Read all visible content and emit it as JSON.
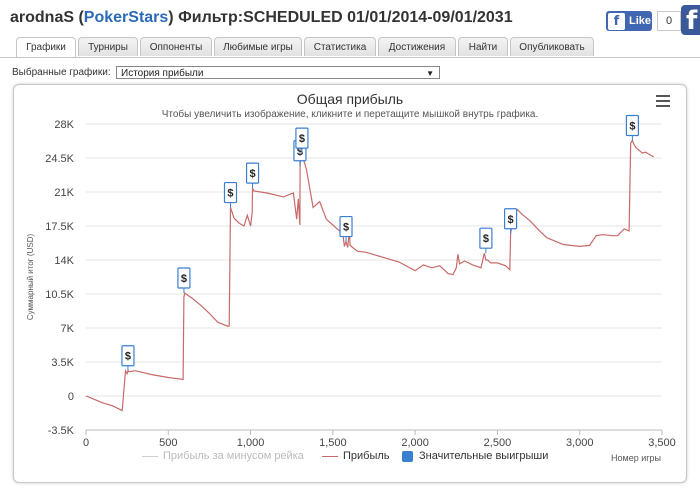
{
  "header": {
    "player": "arodnaS",
    "site": "PokerStars",
    "filter_label": "Фильтр:",
    "filter_value": "SCHEDULED 01/01/2014-09/01/2031",
    "fb_like": "Like",
    "fb_count": "0",
    "fb_icon": "facebook-icon"
  },
  "tabs": [
    {
      "label": "Графики",
      "active": true
    },
    {
      "label": "Турниры",
      "active": false
    },
    {
      "label": "Оппоненты",
      "active": false
    },
    {
      "label": "Любимые игры",
      "active": false
    },
    {
      "label": "Статистика",
      "active": false
    },
    {
      "label": "Достижения",
      "active": false
    },
    {
      "label": "Найти",
      "active": false
    },
    {
      "label": "Опубликовать",
      "active": false
    }
  ],
  "chart_select": {
    "label": "Выбранные графики:",
    "value": "История прибыли"
  },
  "chart_data": {
    "type": "line",
    "title": "Общая прибыль",
    "subtitle": "Чтобы увеличить изображение, кликните и перетащите мышкой внутрь графика.",
    "xlabel": "Номер игры",
    "ylabel": "Суммарный итог (USD)",
    "xlim": [
      0,
      3500
    ],
    "ylim": [
      -3500,
      28000
    ],
    "x_ticks": [
      0,
      500,
      1000,
      1500,
      2000,
      2500,
      3000,
      3500
    ],
    "x_tick_labels": [
      "0",
      "500",
      "1,000",
      "1,500",
      "2,000",
      "2,500",
      "3,000",
      "3,500"
    ],
    "y_ticks": [
      -3500,
      0,
      3500,
      7000,
      10500,
      14000,
      17500,
      21000,
      24500,
      28000
    ],
    "y_tick_labels": [
      "-3.5K",
      "0",
      "3.5K",
      "7K",
      "10.5K",
      "14K",
      "17.5K",
      "21K",
      "24.5K",
      "28K"
    ],
    "grid": "horizontal",
    "legend_position": "bottom",
    "series": [
      {
        "name": "Прибыль за минусом рейка",
        "color": "#d8d8d8",
        "x": [],
        "y": []
      },
      {
        "name": "Прибыль",
        "color": "#c86a6a",
        "x": [
          0,
          30,
          100,
          160,
          220,
          240,
          250,
          255,
          262,
          300,
          400,
          500,
          590,
          595,
          600,
          650,
          700,
          750,
          800,
          860,
          870,
          878,
          900,
          930,
          960,
          980,
          1000,
          1010,
          1012,
          1020,
          1100,
          1200,
          1260,
          1280,
          1290,
          1300,
          1301,
          1305,
          1310,
          1340,
          1380,
          1420,
          1460,
          1500,
          1540,
          1560,
          1570,
          1580,
          1590,
          1600,
          1605,
          1650,
          1700,
          1800,
          1900,
          2000,
          2050,
          2100,
          2150,
          2200,
          2230,
          2250,
          2260,
          2270,
          2300,
          2350,
          2400,
          2420,
          2430,
          2440,
          2460,
          2500,
          2550,
          2575,
          2580,
          2600,
          2620,
          2650,
          2700,
          2750,
          2800,
          2900,
          3000,
          3060,
          3100,
          3140,
          3200,
          3230,
          3270,
          3300,
          3310,
          3315,
          3320,
          3330,
          3340,
          3380,
          3400,
          3420,
          3450
        ],
        "y": [
          0,
          -200,
          -700,
          -1000,
          -1500,
          2600,
          2300,
          2600,
          2500,
          2600,
          2200,
          1900,
          1700,
          10200,
          10600,
          10000,
          9300,
          8500,
          7600,
          7200,
          7200,
          19400,
          18300,
          17800,
          17500,
          18600,
          17500,
          18900,
          21400,
          21100,
          20900,
          20500,
          20900,
          18200,
          20300,
          17600,
          23700,
          24800,
          25000,
          23300,
          19400,
          20000,
          18200,
          17600,
          17000,
          16800,
          15400,
          15900,
          15300,
          17000,
          15500,
          14900,
          14800,
          14300,
          13800,
          12900,
          13500,
          13200,
          13400,
          12600,
          12500,
          13200,
          14600,
          13600,
          13900,
          13500,
          13200,
          14700,
          14000,
          14000,
          13700,
          13700,
          13400,
          13000,
          16700,
          18900,
          19200,
          18700,
          18000,
          17100,
          16300,
          15600,
          15400,
          15500,
          16500,
          16600,
          16500,
          16500,
          17200,
          17000,
          26000,
          26200,
          26300,
          25900,
          25600,
          25000,
          25100,
          24900,
          24600
        ]
      }
    ],
    "flags": [
      {
        "x": 255,
        "y": 2600,
        "label": "$"
      },
      {
        "x": 595,
        "y": 10600,
        "label": "$"
      },
      {
        "x": 878,
        "y": 19400,
        "label": "$"
      },
      {
        "x": 1012,
        "y": 21400,
        "label": "$"
      },
      {
        "x": 1300,
        "y": 23700,
        "label": "$"
      },
      {
        "x": 1312,
        "y": 25000,
        "label": "$"
      },
      {
        "x": 1580,
        "y": 15900,
        "label": "$"
      },
      {
        "x": 2430,
        "y": 14700,
        "label": "$"
      },
      {
        "x": 2580,
        "y": 16700,
        "label": "$"
      },
      {
        "x": 3320,
        "y": 26300,
        "label": "$"
      }
    ],
    "legend": [
      {
        "label": "Прибыль за минусом рейка",
        "color": "#d0d0d0",
        "kind": "line"
      },
      {
        "label": "Прибыль",
        "color": "#c86a6a",
        "kind": "line"
      },
      {
        "label": "Значительные выигрыши",
        "color": "#3a7fd0",
        "kind": "box"
      }
    ]
  }
}
